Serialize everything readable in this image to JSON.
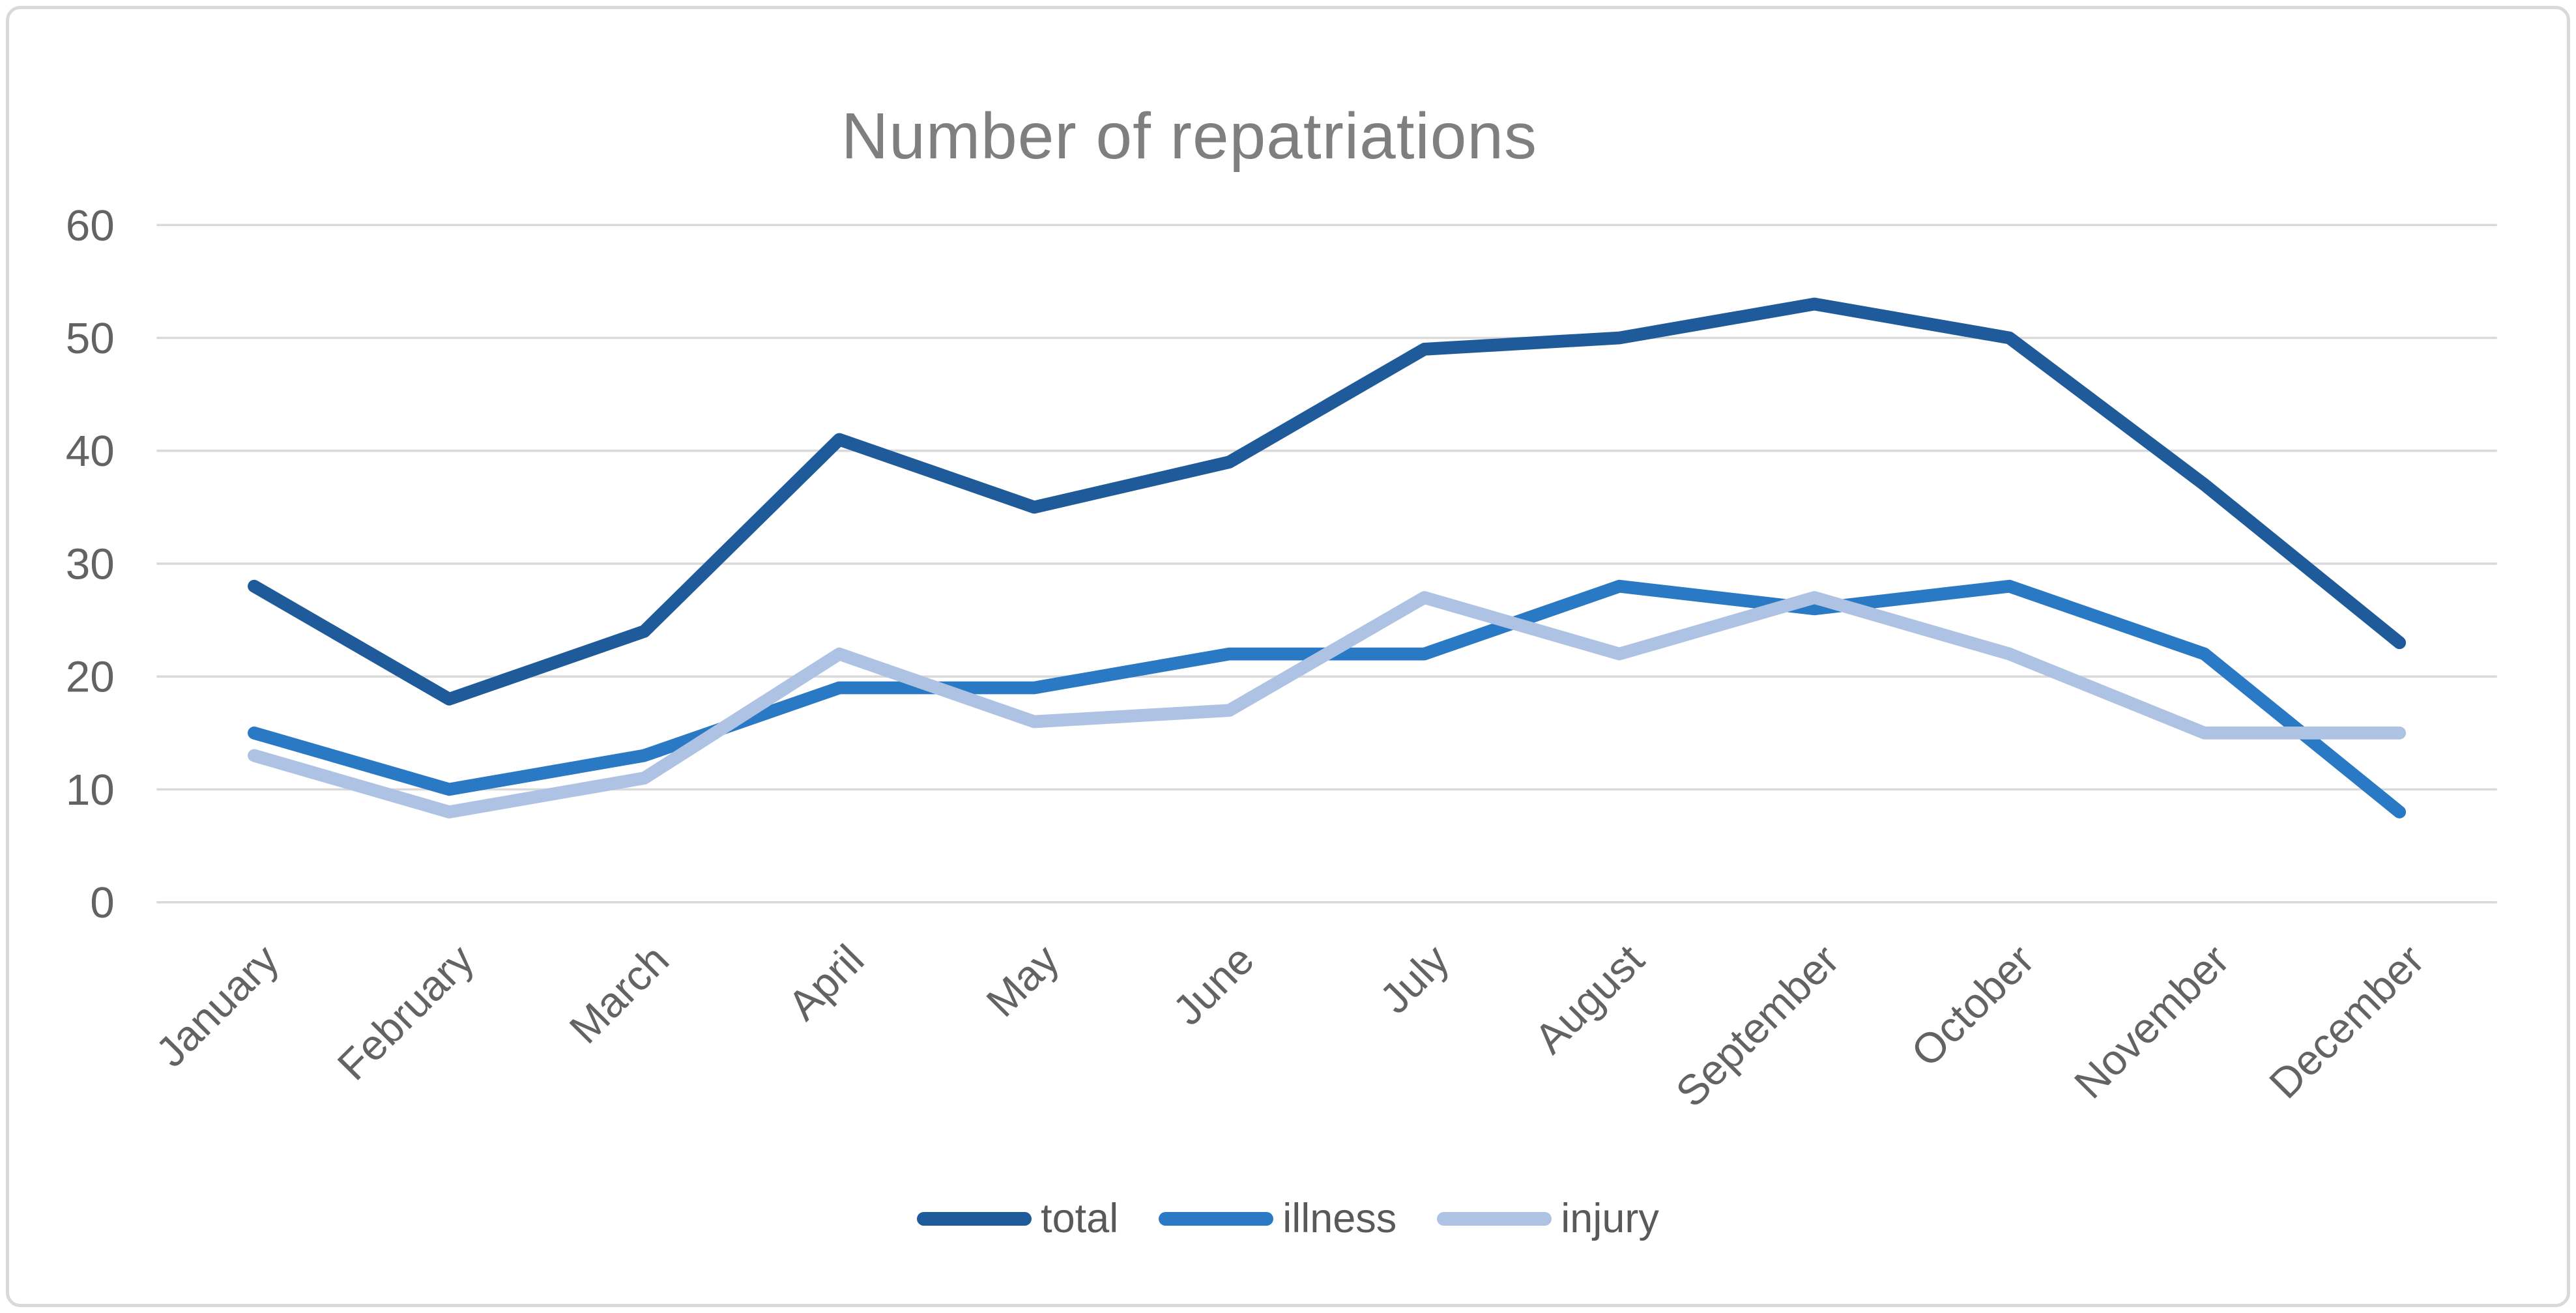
{
  "chart_data": {
    "type": "line",
    "title": "Number of repatriations",
    "categories": [
      "January",
      "February",
      "March",
      "April",
      "May",
      "June",
      "July",
      "August",
      "September",
      "October",
      "November",
      "December"
    ],
    "series": [
      {
        "name": "total",
        "color": "#1f5b9b",
        "values": [
          28,
          18,
          24,
          41,
          35,
          39,
          49,
          50,
          53,
          50,
          37,
          23
        ]
      },
      {
        "name": "illness",
        "color": "#2a79c5",
        "values": [
          15,
          10,
          13,
          19,
          19,
          22,
          22,
          28,
          26,
          28,
          22,
          8
        ]
      },
      {
        "name": "injury",
        "color": "#aec2e4",
        "values": [
          13,
          8,
          11,
          22,
          16,
          17,
          27,
          22,
          27,
          22,
          15,
          15
        ]
      }
    ],
    "ylim": [
      0,
      60
    ],
    "yticks": [
      0,
      10,
      20,
      30,
      40,
      50,
      60
    ],
    "xlabel": "",
    "ylabel": "",
    "grid": "horizontal",
    "legend_position": "bottom",
    "title_color": "#7f7f7f",
    "axis_label_color": "#636363",
    "gridline_color": "#d9d9d9",
    "border_color": "#d9d9d9",
    "background": "#ffffff"
  }
}
